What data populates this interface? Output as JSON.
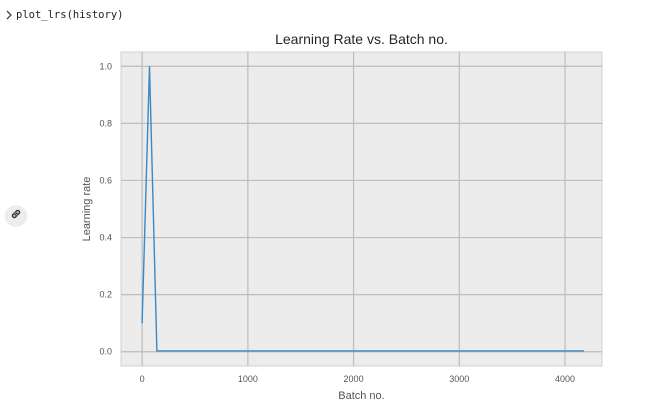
{
  "cell": {
    "code": "plot_lrs(history)"
  },
  "chart_data": {
    "type": "line",
    "title": "Learning Rate vs. Batch no.",
    "xlabel": "Batch no.",
    "ylabel": "Learning rate",
    "xlim": [
      -200,
      4350
    ],
    "ylim": [
      -0.05,
      1.05
    ],
    "xticks": [
      0,
      1000,
      2000,
      3000,
      4000
    ],
    "yticks": [
      0.0,
      0.2,
      0.4,
      0.6,
      0.8,
      1.0
    ],
    "xtick_labels": [
      "0",
      "1000",
      "2000",
      "3000",
      "4000"
    ],
    "ytick_labels": [
      "0.0",
      "0.2",
      "0.4",
      "0.6",
      "0.8",
      "1.0"
    ],
    "grid": true,
    "style": "ggplot-like gray background",
    "series": [
      {
        "color": "#3a88c4",
        "x": [
          0,
          70,
          140,
          4180
        ],
        "y": [
          0.1,
          1.0,
          0.003,
          0.003
        ]
      }
    ]
  }
}
